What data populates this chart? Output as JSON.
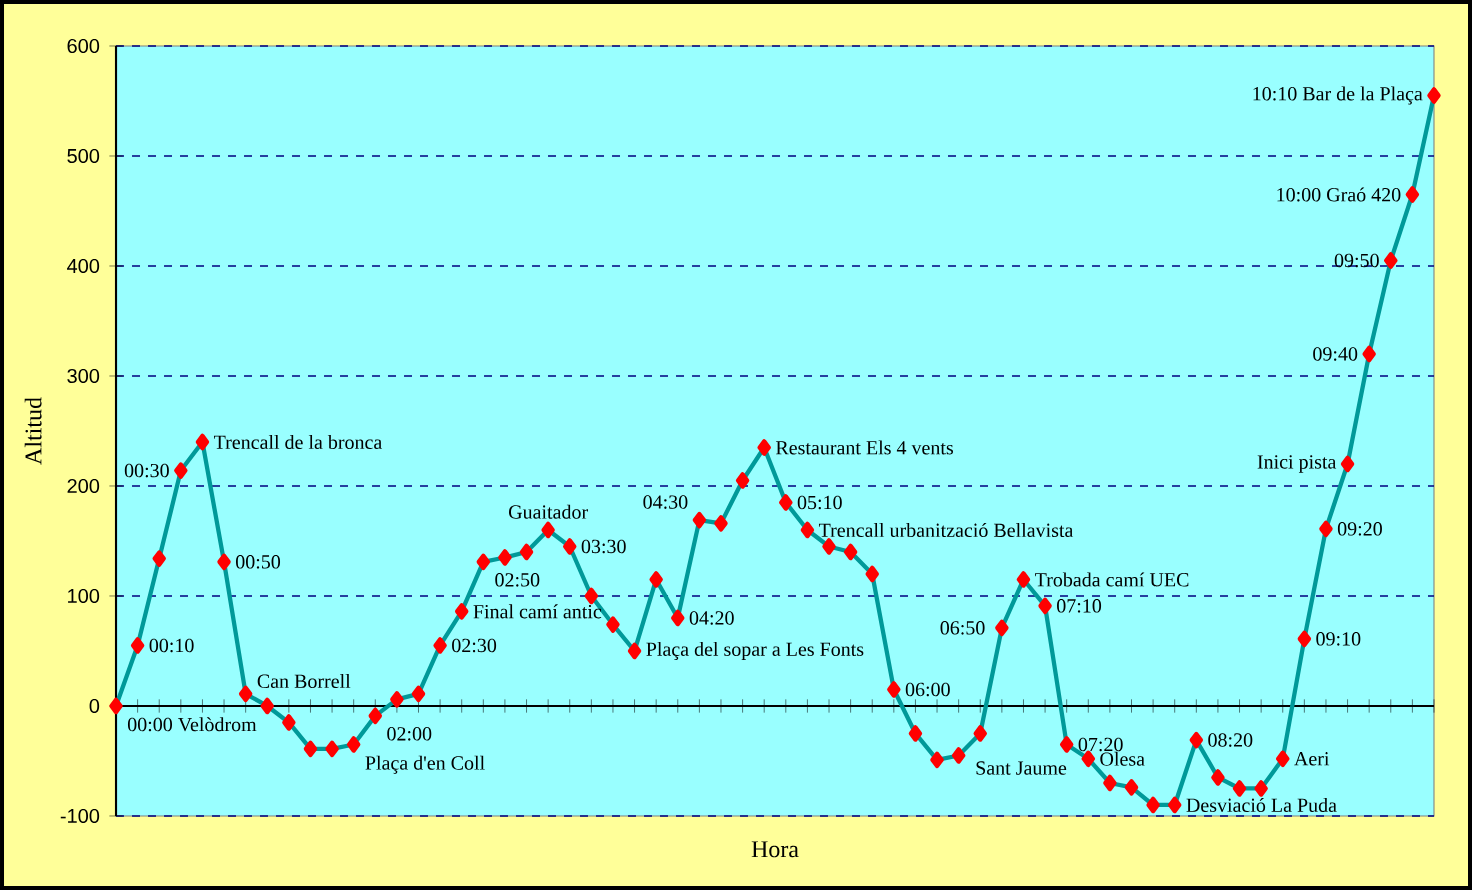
{
  "chart_data": {
    "type": "line",
    "xlabel": "Hora",
    "ylabel": "Altitud",
    "categories": [
      null,
      null,
      null,
      null,
      null,
      null,
      null,
      null,
      null,
      null,
      null,
      null,
      null,
      null,
      null,
      null,
      null,
      null,
      null,
      null,
      null,
      null,
      null,
      null,
      null,
      null,
      null,
      null,
      null,
      null,
      null,
      null,
      null,
      null,
      null,
      null,
      null,
      null,
      null,
      null,
      null,
      null,
      null,
      null,
      null,
      null,
      null,
      null,
      null,
      null,
      null,
      null,
      null,
      null,
      null,
      null,
      null,
      null,
      null,
      null,
      null,
      null
    ],
    "values": [
      0,
      55,
      134,
      214,
      240,
      131,
      11,
      0,
      -15,
      -39,
      -39,
      -35,
      -9,
      6,
      11,
      55,
      86,
      131,
      135,
      140,
      160,
      145,
      100,
      74,
      50,
      115,
      80,
      169,
      166,
      205,
      235,
      185,
      160,
      145,
      140,
      120,
      15,
      -25,
      -49,
      -45,
      -25,
      71,
      115,
      91,
      -35,
      -48,
      -70,
      -74,
      -90,
      -90,
      -31,
      -65,
      -75,
      -75,
      -48,
      61,
      161,
      220,
      320,
      405,
      465,
      555
    ],
    "color": "#009999",
    "marker": "diamond",
    "grid": "y",
    "ylim": [
      -100,
      600
    ],
    "yticks": [
      -100,
      0,
      100,
      200,
      300,
      400,
      500,
      600
    ],
    "annotations": [
      "00:00 Velòdrom",
      "00:10",
      "00:30",
      "Trencall de la bronca",
      "00:50",
      "Can Borrell",
      "Plaça d'en Coll",
      "02:00",
      "02:30",
      "Final camí antic",
      "02:50",
      "Guaitador",
      "03:30",
      "Plaça del sopar a Les Fonts",
      "04:20",
      "04:30",
      "Restaurant Els 4 vents",
      "05:10",
      "Trencall urbanització Bellavista",
      "06:00",
      "Sant Jaume",
      "06:50",
      "Trobada camí UEC",
      "07:10",
      "07:20",
      "Olesa",
      "Desviació La Puda",
      "08:20",
      "Aeri",
      "09:10",
      "09:20",
      "Inici pista",
      "09:40",
      "09:50",
      "10:00 Graó 420",
      "10:10 Bar de la Plaça"
    ]
  }
}
